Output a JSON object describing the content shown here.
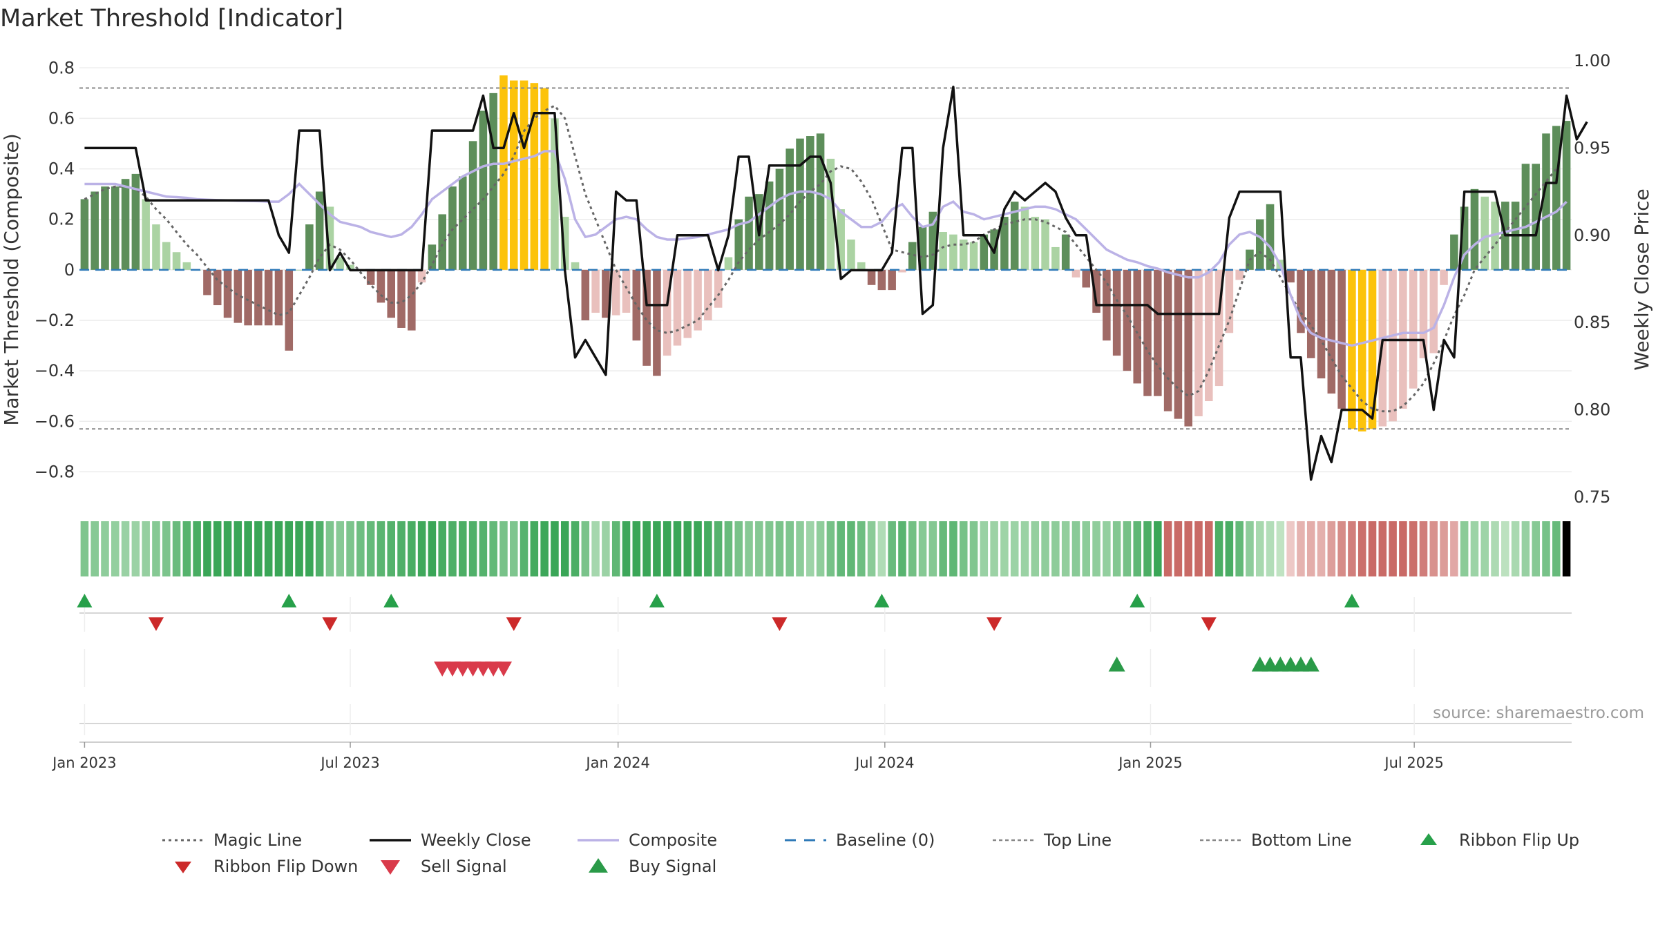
{
  "chart_data": {
    "type": "bar",
    "title": "Market Threshold [Indicator]",
    "ylabel_left": "Market Threshold (Composite)",
    "ylabel_right": "Weekly Close Price",
    "ylim_left": [
      -0.9,
      0.85
    ],
    "ylim_right": [
      0.75,
      1.0
    ],
    "yticks_left": [
      0.8,
      0.6,
      0.4,
      0.2,
      0,
      -0.2,
      -0.4,
      -0.6,
      -0.8
    ],
    "ytick_labels_left": [
      "0.8",
      "0.6",
      "0.4",
      "0.2",
      "0",
      "−0.2",
      "−0.4",
      "−0.6",
      "−0.8"
    ],
    "yticks_right": [
      1.0,
      0.95,
      0.9,
      0.85,
      0.8,
      0.75
    ],
    "ytick_labels_right": [
      "1.00",
      "0.95",
      "0.90",
      "0.85",
      "0.80",
      "0.75"
    ],
    "x_start": "2023-01-02",
    "x_end": "2025-09-01",
    "xticks": [
      {
        "label": "Jan 2023",
        "week": 0
      },
      {
        "label": "Jul 2023",
        "week": 26
      },
      {
        "label": "Jan 2024",
        "week": 52.2
      },
      {
        "label": "Jul 2024",
        "week": 78.3
      },
      {
        "label": "Jan 2025",
        "week": 104.3
      },
      {
        "label": "Jul 2025",
        "week": 130.1
      }
    ],
    "top_line": 0.72,
    "bottom_line": -0.63,
    "baseline": 0,
    "composite_bars": [
      0.28,
      0.31,
      0.33,
      0.33,
      0.36,
      0.38,
      0.28,
      0.18,
      0.11,
      0.07,
      0.03,
      0,
      -0.1,
      -0.14,
      -0.19,
      -0.21,
      -0.22,
      -0.22,
      -0.22,
      -0.22,
      -0.32,
      0,
      0.18,
      0.31,
      0.25,
      0.05,
      0.02,
      0,
      -0.06,
      -0.13,
      -0.19,
      -0.23,
      -0.24,
      -0.05,
      0.1,
      0.22,
      0.33,
      0.37,
      0.51,
      0.63,
      0.7,
      0.77,
      0.75,
      0.75,
      0.74,
      0.72,
      0.6,
      0.21,
      0.03,
      -0.2,
      -0.17,
      -0.19,
      -0.18,
      -0.17,
      -0.28,
      -0.38,
      -0.42,
      -0.34,
      -0.3,
      -0.27,
      -0.24,
      -0.2,
      -0.15,
      0.05,
      0.2,
      0.29,
      0.3,
      0.35,
      0.4,
      0.48,
      0.52,
      0.53,
      0.54,
      0.44,
      0.24,
      0.12,
      0.03,
      -0.06,
      -0.08,
      -0.08,
      -0.01,
      0.11,
      0.17,
      0.23,
      0.15,
      0.14,
      0.12,
      0.11,
      0.14,
      0.16,
      0.21,
      0.27,
      0.25,
      0.21,
      0.2,
      0.09,
      0.14,
      -0.03,
      -0.07,
      -0.17,
      -0.28,
      -0.34,
      -0.4,
      -0.45,
      -0.5,
      -0.5,
      -0.56,
      -0.59,
      -0.62,
      -0.58,
      -0.52,
      -0.46,
      -0.25,
      -0.04,
      0.08,
      0.2,
      0.26,
      0.04,
      -0.05,
      -0.25,
      -0.35,
      -0.43,
      -0.49,
      -0.55,
      -0.63,
      -0.64,
      -0.63,
      -0.62,
      -0.6,
      -0.55,
      -0.47,
      -0.35,
      -0.33,
      -0.06,
      0.14,
      0.25,
      0.32,
      0.29,
      0.27,
      0.27,
      0.27,
      0.42,
      0.42,
      0.54,
      0.57,
      0.59
    ],
    "weekly_close": [
      0.95,
      0.95,
      0.95,
      0.95,
      0.95,
      0.95,
      0.92,
      0.92,
      0.92,
      0.92,
      0.92,
      0.92,
      0.92,
      0.92,
      0.92,
      0.92,
      0.92,
      0.92,
      0.92,
      0.9,
      0.89,
      0.96,
      0.96,
      0.96,
      0.88,
      0.89,
      0.88,
      0.88,
      0.88,
      0.88,
      0.88,
      0.88,
      0.88,
      0.88,
      0.96,
      0.96,
      0.96,
      0.96,
      0.96,
      0.98,
      0.95,
      0.95,
      0.97,
      0.95,
      0.97,
      0.97,
      0.97,
      0.88,
      0.83,
      0.84,
      0.83,
      0.82,
      0.925,
      0.92,
      0.92,
      0.86,
      0.86,
      0.86,
      0.9,
      0.9,
      0.9,
      0.9,
      0.88,
      0.9,
      0.945,
      0.945,
      0.9,
      0.94,
      0.94,
      0.94,
      0.94,
      0.945,
      0.945,
      0.93,
      0.875,
      0.88,
      0.88,
      0.88,
      0.88,
      0.89,
      0.95,
      0.95,
      0.855,
      0.86,
      0.95,
      0.985,
      0.9,
      0.9,
      0.9,
      0.89,
      0.915,
      0.925,
      0.92,
      0.925,
      0.93,
      0.925,
      0.91,
      0.9,
      0.9,
      0.86,
      0.86,
      0.86,
      0.86,
      0.86,
      0.86,
      0.855,
      0.855,
      0.855,
      0.855,
      0.855,
      0.855,
      0.855,
      0.91,
      0.925,
      0.925,
      0.925,
      0.925,
      0.925,
      0.83,
      0.83,
      0.76,
      0.785,
      0.77,
      0.8,
      0.8,
      0.8,
      0.795,
      0.84,
      0.84,
      0.84,
      0.84,
      0.84,
      0.8,
      0.84,
      0.83,
      0.925,
      0.925,
      0.925,
      0.925,
      0.9,
      0.9,
      0.9,
      0.9,
      0.93,
      0.93,
      0.98,
      0.955,
      0.965
    ],
    "composite_line": [
      0.34,
      0.34,
      0.34,
      0.34,
      0.33,
      0.32,
      0.31,
      0.3,
      0.29,
      0.288,
      0.285,
      0.28,
      0.278,
      0.276,
      0.275,
      0.274,
      0.273,
      0.272,
      0.27,
      0.27,
      0.3,
      0.34,
      0.3,
      0.26,
      0.22,
      0.19,
      0.18,
      0.17,
      0.15,
      0.14,
      0.13,
      0.14,
      0.17,
      0.22,
      0.28,
      0.31,
      0.34,
      0.37,
      0.39,
      0.41,
      0.42,
      0.42,
      0.43,
      0.44,
      0.45,
      0.47,
      0.47,
      0.36,
      0.2,
      0.13,
      0.14,
      0.17,
      0.2,
      0.21,
      0.2,
      0.16,
      0.13,
      0.12,
      0.12,
      0.125,
      0.13,
      0.14,
      0.15,
      0.16,
      0.18,
      0.19,
      0.22,
      0.25,
      0.28,
      0.3,
      0.31,
      0.31,
      0.3,
      0.28,
      0.23,
      0.2,
      0.17,
      0.17,
      0.19,
      0.24,
      0.26,
      0.21,
      0.17,
      0.18,
      0.25,
      0.27,
      0.23,
      0.22,
      0.2,
      0.21,
      0.22,
      0.23,
      0.24,
      0.25,
      0.25,
      0.24,
      0.22,
      0.2,
      0.16,
      0.12,
      0.08,
      0.06,
      0.04,
      0.03,
      0.015,
      0.005,
      -0.01,
      -0.02,
      -0.03,
      -0.03,
      -0.01,
      0.03,
      0.1,
      0.14,
      0.15,
      0.13,
      0.09,
      0.02,
      -0.1,
      -0.2,
      -0.25,
      -0.27,
      -0.28,
      -0.29,
      -0.3,
      -0.29,
      -0.28,
      -0.27,
      -0.26,
      -0.25,
      -0.25,
      -0.25,
      -0.23,
      -0.14,
      -0.03,
      0.06,
      0.1,
      0.13,
      0.14,
      0.15,
      0.16,
      0.17,
      0.19,
      0.21,
      0.23,
      0.27
    ],
    "magic_line": [
      0.28,
      0.3,
      0.32,
      0.33,
      0.33,
      0.32,
      0.29,
      0.24,
      0.2,
      0.15,
      0.1,
      0.06,
      0.01,
      -0.04,
      -0.07,
      -0.1,
      -0.12,
      -0.14,
      -0.16,
      -0.18,
      -0.17,
      -0.1,
      -0.03,
      0.05,
      0.1,
      0.08,
      0.04,
      -0.01,
      -0.06,
      -0.1,
      -0.13,
      -0.13,
      -0.1,
      -0.05,
      0.02,
      0.1,
      0.16,
      0.2,
      0.24,
      0.28,
      0.33,
      0.38,
      0.45,
      0.55,
      0.6,
      0.63,
      0.65,
      0.6,
      0.45,
      0.3,
      0.2,
      0.1,
      0.0,
      -0.07,
      -0.14,
      -0.2,
      -0.24,
      -0.25,
      -0.24,
      -0.22,
      -0.2,
      -0.15,
      -0.1,
      -0.04,
      0.03,
      0.08,
      0.12,
      0.15,
      0.18,
      0.22,
      0.27,
      0.31,
      0.34,
      0.39,
      0.41,
      0.4,
      0.35,
      0.28,
      0.18,
      0.08,
      0.07,
      0.06,
      0.05,
      0.06,
      0.09,
      0.1,
      0.1,
      0.11,
      0.14,
      0.16,
      0.18,
      0.19,
      0.2,
      0.2,
      0.19,
      0.17,
      0.15,
      0.1,
      0.05,
      0.0,
      -0.05,
      -0.12,
      -0.18,
      -0.25,
      -0.32,
      -0.38,
      -0.43,
      -0.47,
      -0.5,
      -0.48,
      -0.4,
      -0.3,
      -0.2,
      -0.08,
      0.04,
      0.07,
      0.04,
      -0.03,
      -0.1,
      -0.17,
      -0.22,
      -0.28,
      -0.35,
      -0.42,
      -0.47,
      -0.52,
      -0.55,
      -0.56,
      -0.56,
      -0.54,
      -0.5,
      -0.45,
      -0.37,
      -0.28,
      -0.18,
      -0.1,
      0.0,
      0.05,
      0.1,
      0.15,
      0.2,
      0.25,
      0.3,
      0.35,
      0.4
    ],
    "ribbon_flip_up_weeks": [
      0,
      20,
      30,
      56,
      78,
      103,
      124
    ],
    "ribbon_flip_down_weeks": [
      7,
      24,
      42,
      68,
      89,
      110
    ],
    "sell_signal_weeks": [
      35,
      36,
      37,
      38,
      39,
      40,
      41
    ],
    "buy_signal_weeks": [
      101,
      115,
      116,
      117,
      118,
      119,
      120
    ],
    "legend": [
      "Magic Line",
      "Weekly Close",
      "Composite",
      "Baseline (0)",
      "Top Line",
      "Bottom Line",
      "Ribbon Flip Up",
      "Ribbon Flip Down",
      "Sell Signal",
      "Buy Signal"
    ],
    "source": "source: sharemaestro.com"
  },
  "colors": {
    "bar_dark_green": "#5d8e5a",
    "bar_light_green": "#abd3a3",
    "bar_dark_red": "#a06a66",
    "bar_light_red": "#e9c0bd",
    "bar_gold": "#fcc30b",
    "weekly_close": "#111111",
    "composite": "#bbb2e6",
    "magic": "#666666",
    "baseline": "#2f7ab8",
    "threshold": "#888888",
    "grid": "#ececec",
    "up": "#27a04a",
    "down": "#cc2a2a",
    "sell": "#d93a4a",
    "buy": "#2a9a48"
  }
}
